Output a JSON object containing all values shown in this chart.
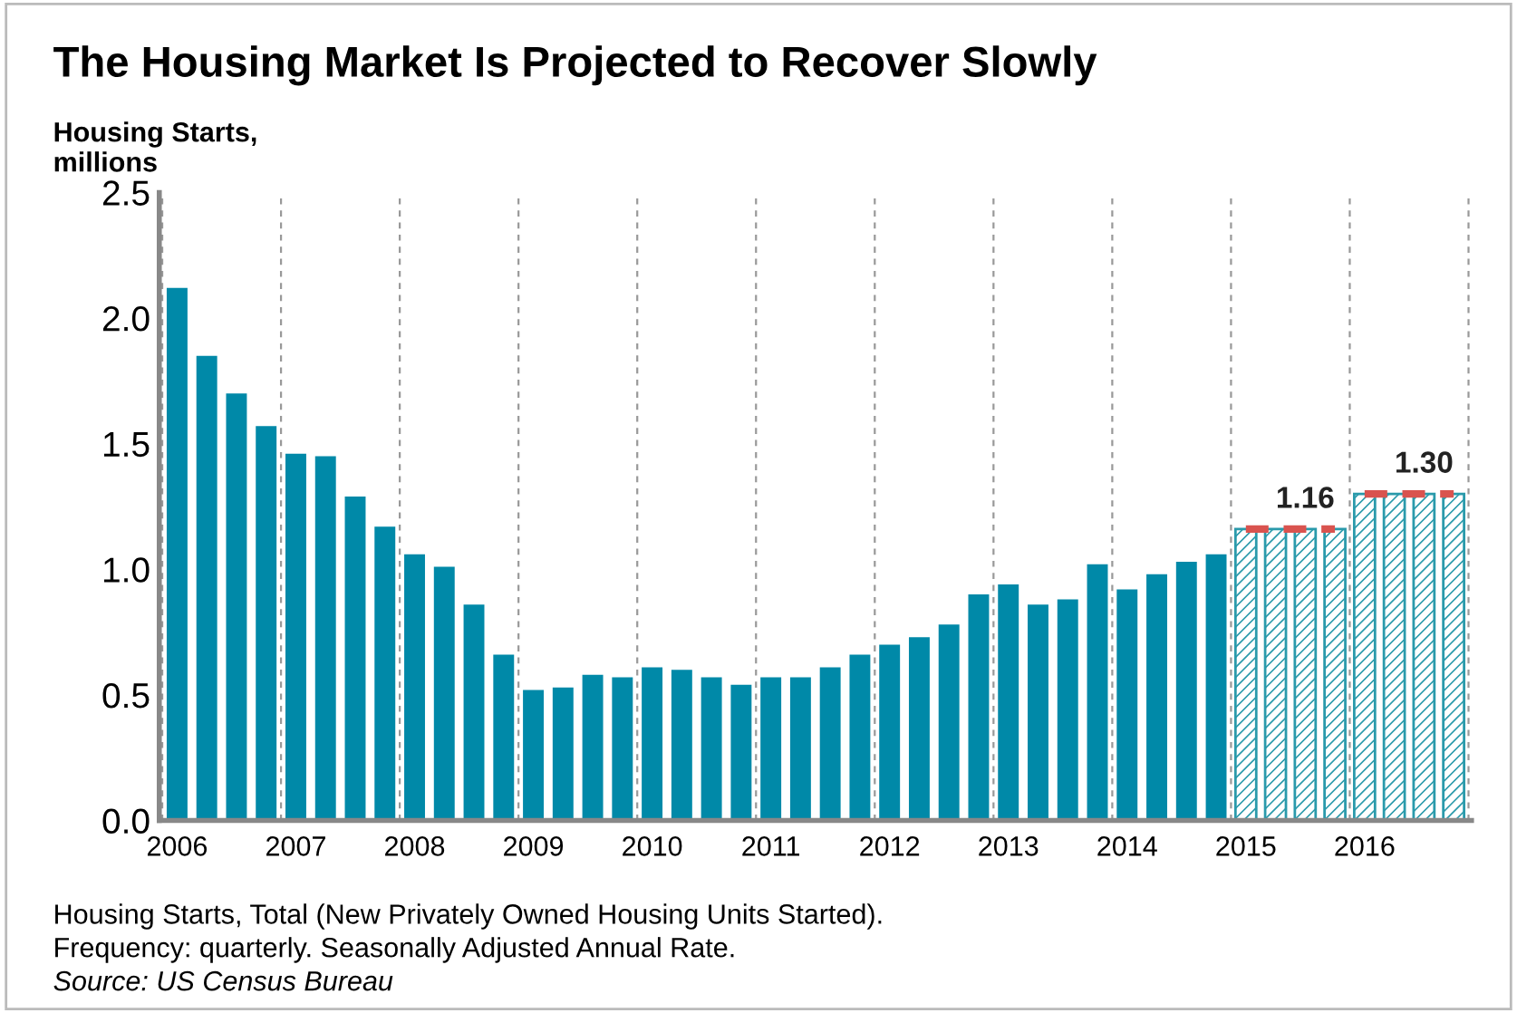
{
  "chart_data": {
    "type": "bar",
    "title": "The Housing Market Is Projected to Recover Slowly",
    "ylabel": "Housing Starts,\nmillions",
    "categories": [
      "2006",
      null,
      null,
      null,
      "2007",
      null,
      null,
      null,
      "2008",
      null,
      null,
      null,
      "2009",
      null,
      null,
      null,
      "2010",
      null,
      null,
      null,
      "2011",
      null,
      null,
      null,
      "2012",
      null,
      null,
      null,
      "2013",
      null,
      null,
      null,
      "2014",
      null,
      null,
      null,
      "2015",
      null,
      null,
      null,
      "2016",
      null,
      null,
      null
    ],
    "series": [
      {
        "color": "#0089a8",
        "values": [
          2.12,
          1.85,
          1.7,
          1.57,
          1.46,
          1.45,
          1.29,
          1.17,
          1.06,
          1.01,
          0.86,
          0.66,
          0.52,
          0.53,
          0.58,
          0.57,
          0.61,
          0.6,
          0.57,
          0.54,
          0.57,
          0.57,
          0.61,
          0.66,
          0.7,
          0.73,
          0.78,
          0.9,
          0.94,
          0.86,
          0.88,
          1.02,
          0.92,
          0.98,
          1.03,
          1.06,
          null,
          null,
          null,
          null,
          null,
          null,
          null,
          null
        ]
      },
      {
        "color": "#2a9aab",
        "values": [
          null,
          null,
          null,
          null,
          null,
          null,
          null,
          null,
          null,
          null,
          null,
          null,
          null,
          null,
          null,
          null,
          null,
          null,
          null,
          null,
          null,
          null,
          null,
          null,
          null,
          null,
          null,
          null,
          null,
          null,
          null,
          null,
          null,
          null,
          null,
          null,
          1.16,
          1.16,
          1.16,
          1.16,
          1.3,
          1.3,
          1.3,
          1.3
        ]
      },
      {
        "type": "line",
        "color": "#d9534f",
        "line_style": "dashed",
        "values": [
          null,
          null,
          null,
          null,
          null,
          null,
          null,
          null,
          null,
          null,
          null,
          null,
          null,
          null,
          null,
          null,
          null,
          null,
          null,
          null,
          null,
          null,
          null,
          null,
          null,
          null,
          null,
          null,
          null,
          null,
          null,
          null,
          null,
          null,
          null,
          null,
          1.16,
          1.16,
          1.16,
          1.16,
          null,
          null,
          null,
          null
        ],
        "value_labels": [
          null,
          null,
          null,
          null,
          null,
          null,
          null,
          null,
          null,
          null,
          null,
          null,
          null,
          null,
          null,
          null,
          null,
          null,
          null,
          null,
          null,
          null,
          null,
          null,
          null,
          null,
          null,
          null,
          null,
          null,
          null,
          null,
          null,
          null,
          null,
          null,
          null,
          null,
          "1.16",
          null,
          null,
          null,
          null,
          null
        ]
      },
      {
        "type": "line",
        "color": "#d9534f",
        "line_style": "dashed",
        "values": [
          null,
          null,
          null,
          null,
          null,
          null,
          null,
          null,
          null,
          null,
          null,
          null,
          null,
          null,
          null,
          null,
          null,
          null,
          null,
          null,
          null,
          null,
          null,
          null,
          null,
          null,
          null,
          null,
          null,
          null,
          null,
          null,
          null,
          null,
          null,
          null,
          null,
          null,
          null,
          null,
          1.3,
          1.3,
          1.3,
          1.3
        ],
        "value_labels": [
          null,
          null,
          null,
          null,
          null,
          null,
          null,
          null,
          null,
          null,
          null,
          null,
          null,
          null,
          null,
          null,
          null,
          null,
          null,
          null,
          null,
          null,
          null,
          null,
          null,
          null,
          null,
          null,
          null,
          null,
          null,
          null,
          null,
          null,
          null,
          null,
          null,
          null,
          null,
          null,
          null,
          null,
          "1.30",
          null
        ]
      }
    ],
    "ylim": [
      0,
      2.5
    ],
    "yticks": [
      {
        "value": 0,
        "label": "0.0"
      },
      {
        "value": 0.5,
        "label": "0.5"
      },
      {
        "value": 1,
        "label": "1.0"
      },
      {
        "value": 1.5,
        "label": "1.5"
      },
      {
        "value": 2,
        "label": "2.0"
      },
      {
        "value": 2.5,
        "label": "2.5"
      }
    ],
    "grid": "x",
    "legend": false,
    "annotations": [
      "Housing Starts, Total (New Privately Owned Housing Units Started).",
      "Frequency: quarterly. Seasonally Adjusted Annual Rate.",
      "Source: US Census Bureau"
    ]
  }
}
